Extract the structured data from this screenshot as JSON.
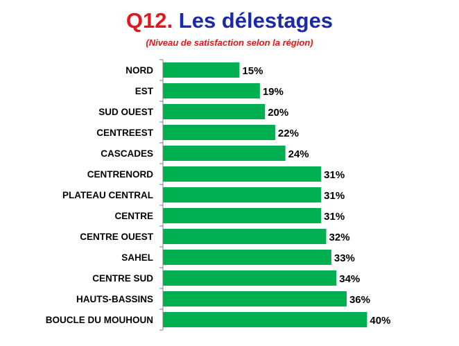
{
  "title": {
    "prefix": "Q12.",
    "text": "Les délestages"
  },
  "subtitle": "(Niveau de satisfaction selon la région)",
  "colors": {
    "bar": "#00b050",
    "axis": "#808080",
    "title_prefix": "#e8141c",
    "title_text": "#1a2aa8"
  },
  "chart_data": {
    "type": "bar",
    "orientation": "horizontal",
    "title": "Q12. Les délestages",
    "subtitle": "(Niveau de satisfaction selon la région)",
    "categories": [
      "NORD",
      "EST",
      "SUD OUEST",
      "CENTREEST",
      "CASCADES",
      "CENTRENORD",
      "PLATEAU CENTRAL",
      "CENTRE",
      "CENTRE OUEST",
      "SAHEL",
      "CENTRE SUD",
      "HAUTS-BASSINS",
      "BOUCLE DU MOUHOUN"
    ],
    "values": [
      15,
      19,
      20,
      22,
      24,
      31,
      31,
      31,
      32,
      33,
      34,
      36,
      40
    ],
    "value_labels": [
      "15%",
      "19%",
      "20%",
      "22%",
      "24%",
      "31%",
      "31%",
      "31%",
      "32%",
      "33%",
      "34%",
      "36%",
      "40%"
    ],
    "unit": "%",
    "xlim": [
      0,
      100
    ],
    "grid": false,
    "legend": "none"
  }
}
